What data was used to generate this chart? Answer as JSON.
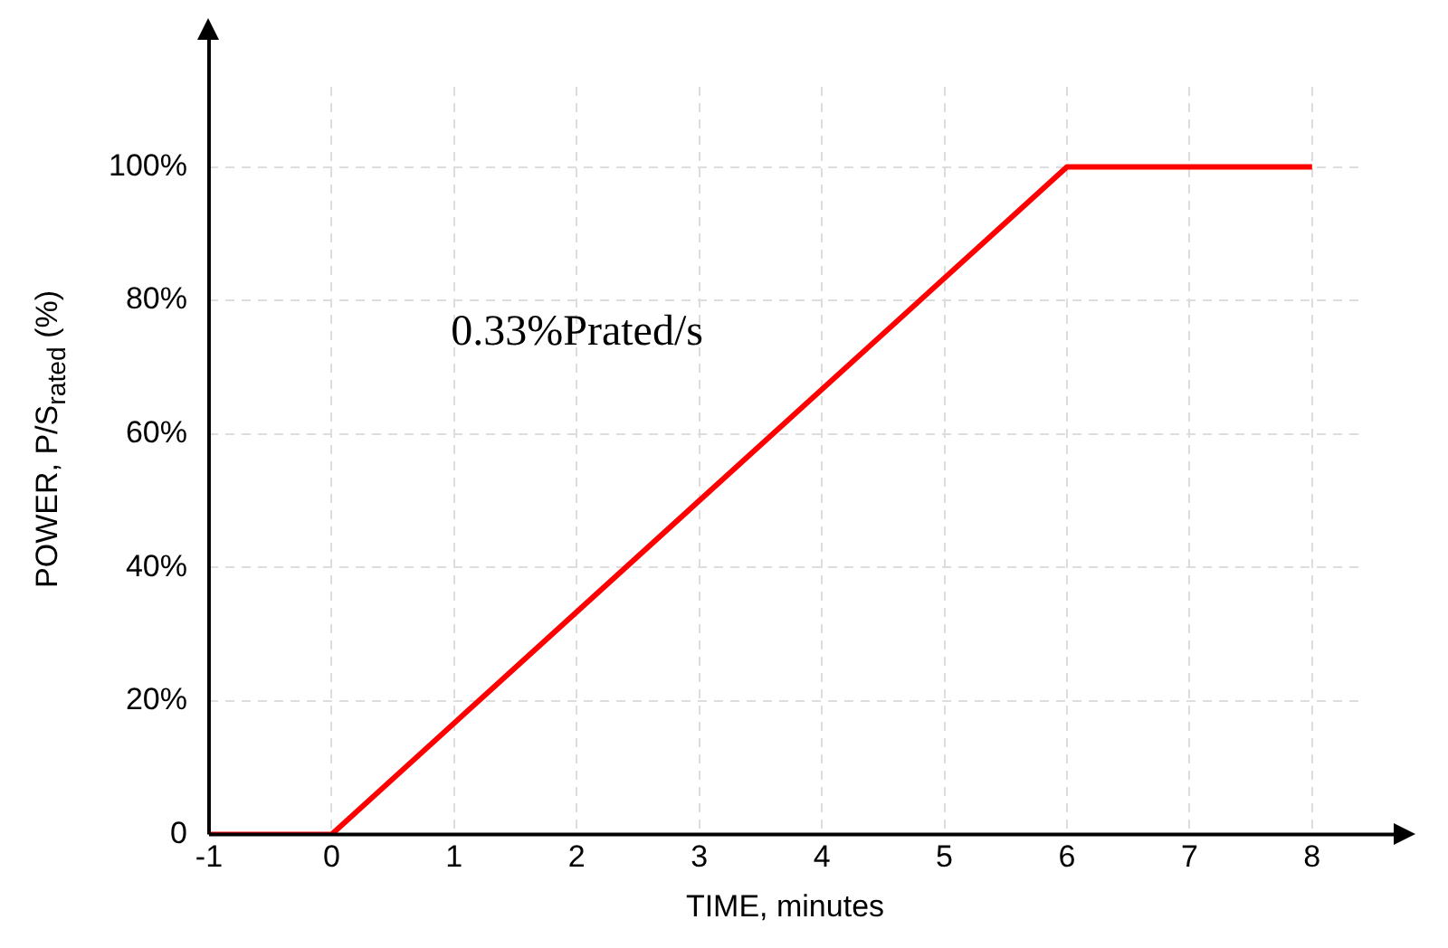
{
  "chart_data": {
    "type": "line",
    "xlabel": "TIME, minutes",
    "ylabel": "POWER, P/S$_{rated}$ (%)",
    "x": [
      -1,
      0,
      6,
      8
    ],
    "series": [
      {
        "color": "#ff0000",
        "values": [
          0,
          0,
          100,
          100
        ]
      }
    ],
    "xlim": [
      -1,
      8.4
    ],
    "xticks": [
      -1,
      0,
      1,
      2,
      3,
      4,
      5,
      6,
      7,
      8
    ],
    "ylim": [
      0,
      112
    ],
    "yticks": [
      0,
      {
        "value": 20,
        "label": "20%"
      },
      {
        "value": 40,
        "label": "40%"
      },
      {
        "value": 60,
        "label": "60%"
      },
      {
        "value": 80,
        "label": "80%"
      },
      {
        "value": 100,
        "label": "100%"
      }
    ],
    "annotations": [
      "0.33%Prated/s"
    ],
    "grid": true,
    "legend": false,
    "marker": "none",
    "line_style": "solid"
  }
}
